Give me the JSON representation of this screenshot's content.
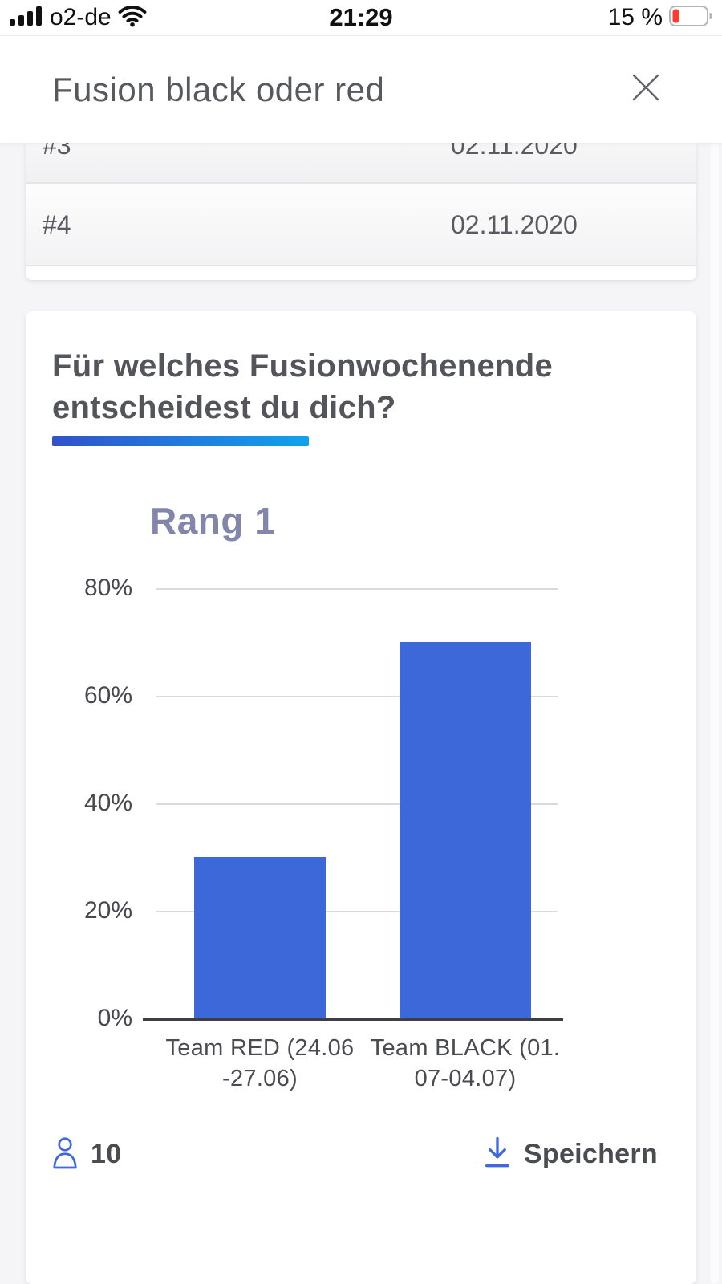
{
  "status_bar": {
    "carrier": "o2-de",
    "time": "21:29",
    "battery_percent": "15 %"
  },
  "modal": {
    "title": "Fusion black oder red"
  },
  "history_list": {
    "rows": [
      {
        "rank": "#3",
        "date": "02.11.2020"
      },
      {
        "rank": "#4",
        "date": "02.11.2020"
      }
    ]
  },
  "poll": {
    "question": "Für welches Fusionwochenende entscheidest du dich?",
    "votes_count": "10",
    "save_label": "Speichern"
  },
  "chart_data": {
    "type": "bar",
    "title": "Rang 1",
    "categories": [
      "Team RED (24.06-27.06)",
      "Team BLACK (01.07-04.07)"
    ],
    "category_lines": [
      [
        "Team RED (24.06",
        "-27.06)"
      ],
      [
        "Team BLACK (01.",
        "07-04.07)"
      ]
    ],
    "values": [
      30,
      70
    ],
    "unit": "%",
    "yticks": [
      0,
      20,
      40,
      60,
      80
    ],
    "ylim": [
      0,
      80
    ],
    "grid": true,
    "legend": false,
    "bar_color": "#3c68da"
  },
  "colors": {
    "accent_blue": "#3f68e0",
    "bar_blue": "#3c68da",
    "underline_gradient_start": "#3351cb",
    "underline_gradient_end": "#10a2ec",
    "battery_red": "#ff3b30",
    "chart_title_purple": "#8286ab"
  }
}
